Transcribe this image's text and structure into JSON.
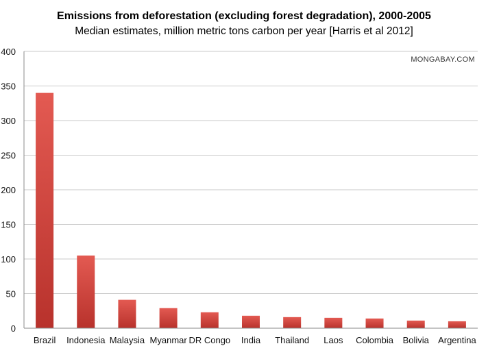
{
  "chart_data": {
    "type": "bar",
    "title": "Emissions from deforestation (excluding forest degradation), 2000-2005",
    "subtitle": "Median estimates, million metric tons carbon per year [Harris et al 2012]",
    "watermark": "MONGABAY.COM",
    "categories": [
      "Brazil",
      "Indonesia",
      "Malaysia",
      "Myanmar",
      "DR Congo",
      "India",
      "Thailand",
      "Laos",
      "Colombia",
      "Bolivia",
      "Argentina"
    ],
    "values": [
      340,
      105,
      41,
      29,
      23,
      18,
      16,
      15,
      14,
      11,
      10
    ],
    "ylim": [
      0,
      400
    ],
    "yticks": [
      0,
      50,
      100,
      150,
      200,
      250,
      300,
      350,
      400
    ],
    "xlabel": "",
    "ylabel": "",
    "grid": true,
    "colors": {
      "bar_light": "#e35a52",
      "bar_dark": "#b8322c",
      "grid": "#c9c9c9"
    }
  }
}
